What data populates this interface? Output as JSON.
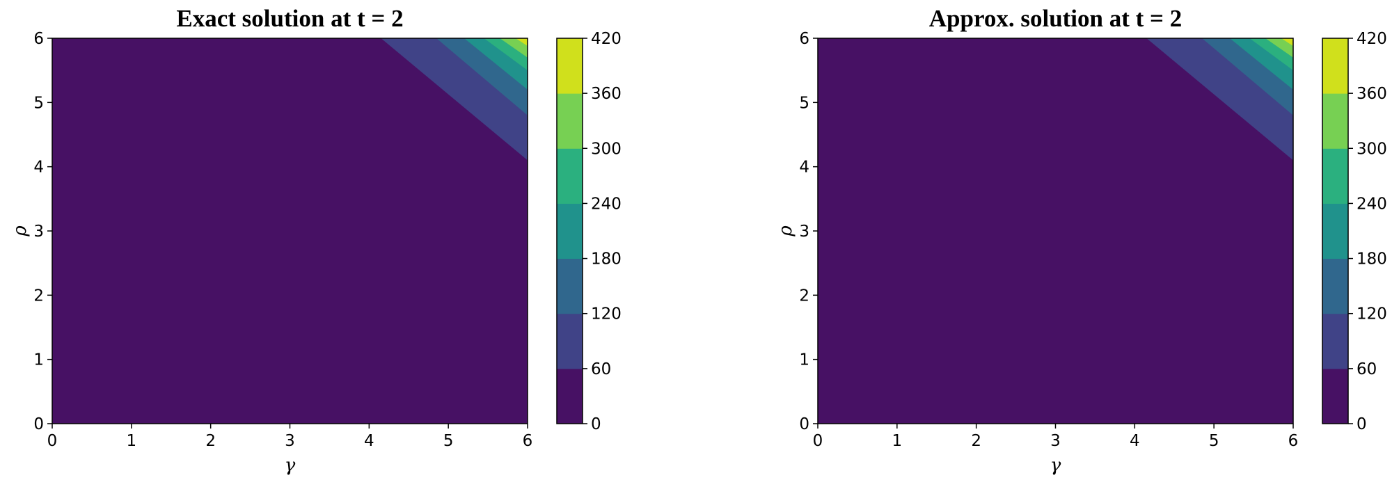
{
  "chart_data": [
    {
      "type": "contour",
      "title": "Exact solution at t = 2",
      "xlabel": "γ",
      "ylabel": "ρ",
      "xlim": [
        0,
        6
      ],
      "ylim": [
        0,
        6
      ],
      "xticks": [
        "0",
        "1",
        "2",
        "3",
        "4",
        "5",
        "6"
      ],
      "yticks": [
        "0",
        "1",
        "2",
        "3",
        "4",
        "5",
        "6"
      ],
      "colorbar": {
        "levels": [
          0,
          60,
          120,
          180,
          240,
          300,
          360,
          420
        ],
        "tick_labels": [
          "0",
          "60",
          "120",
          "180",
          "240",
          "300",
          "360",
          "420"
        ],
        "colors": [
          "#471164",
          "#404387",
          "#30678d",
          "#20928c",
          "#2bb07f",
          "#77d053",
          "#d0e01c"
        ]
      },
      "boundaries": [
        {
          "level": 60,
          "points": [
            [
              4.15,
              6.0
            ],
            [
              6.0,
              4.1
            ]
          ]
        },
        {
          "level": 120,
          "points": [
            [
              4.85,
              6.0
            ],
            [
              6.0,
              4.8
            ]
          ]
        },
        {
          "level": 180,
          "points": [
            [
              5.2,
              6.0
            ],
            [
              6.0,
              5.2
            ]
          ]
        },
        {
          "level": 240,
          "points": [
            [
              5.45,
              6.0
            ],
            [
              6.0,
              5.5
            ]
          ]
        },
        {
          "level": 300,
          "points": [
            [
              5.65,
              6.0
            ],
            [
              6.0,
              5.7
            ]
          ]
        },
        {
          "level": 360,
          "points": [
            [
              5.85,
              6.0
            ],
            [
              6.0,
              5.88
            ]
          ]
        },
        {
          "level": 420,
          "points": [
            [
              5.97,
              6.0
            ],
            [
              6.0,
              5.98
            ]
          ]
        }
      ]
    },
    {
      "type": "contour",
      "title": "Approx. solution at t = 2",
      "xlabel": "γ",
      "ylabel": "ρ",
      "xlim": [
        0,
        6
      ],
      "ylim": [
        0,
        6
      ],
      "xticks": [
        "0",
        "1",
        "2",
        "3",
        "4",
        "5",
        "6"
      ],
      "yticks": [
        "0",
        "1",
        "2",
        "3",
        "4",
        "5",
        "6"
      ],
      "colorbar": {
        "levels": [
          0,
          60,
          120,
          180,
          240,
          300,
          360,
          420
        ],
        "tick_labels": [
          "0",
          "60",
          "120",
          "180",
          "240",
          "300",
          "360",
          "420"
        ],
        "colors": [
          "#471164",
          "#404387",
          "#30678d",
          "#20928c",
          "#2bb07f",
          "#77d053",
          "#d0e01c"
        ]
      },
      "boundaries": [
        {
          "level": 60,
          "points": [
            [
              4.15,
              6.0
            ],
            [
              6.0,
              4.1
            ]
          ]
        },
        {
          "level": 120,
          "points": [
            [
              4.85,
              6.0
            ],
            [
              6.0,
              4.8
            ]
          ]
        },
        {
          "level": 180,
          "points": [
            [
              5.2,
              6.0
            ],
            [
              6.0,
              5.2
            ]
          ]
        },
        {
          "level": 240,
          "points": [
            [
              5.45,
              6.0
            ],
            [
              6.0,
              5.5
            ]
          ]
        },
        {
          "level": 300,
          "points": [
            [
              5.65,
              6.0
            ],
            [
              6.0,
              5.7
            ]
          ]
        },
        {
          "level": 360,
          "points": [
            [
              5.85,
              6.0
            ],
            [
              6.0,
              5.88
            ]
          ]
        },
        {
          "level": 420,
          "points": [
            [
              5.97,
              6.0
            ],
            [
              6.0,
              5.98
            ]
          ]
        }
      ]
    }
  ]
}
